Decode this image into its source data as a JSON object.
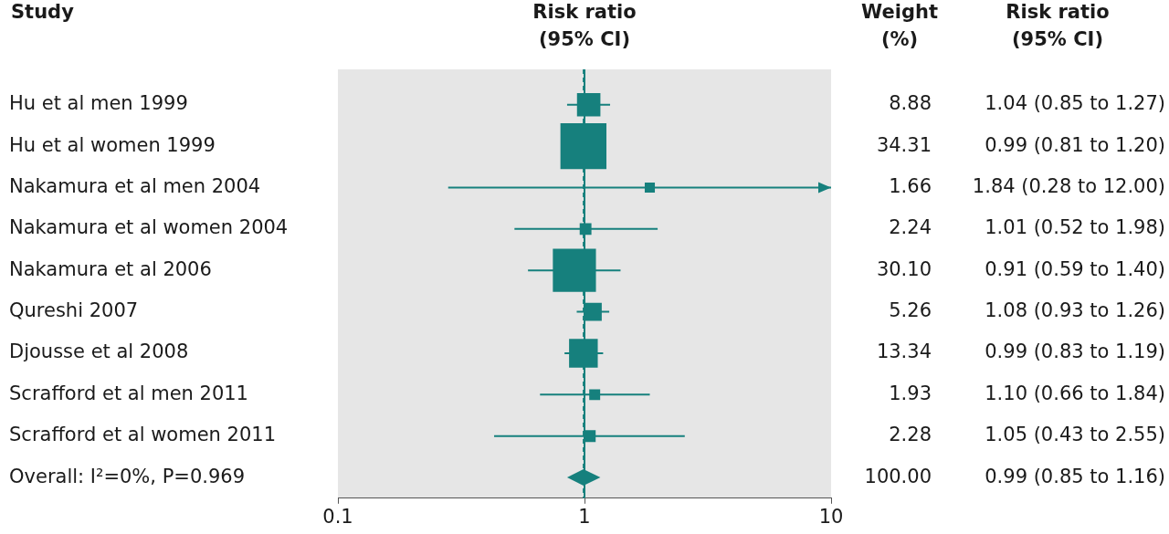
{
  "chart_data": {
    "type": "forest",
    "columns": [
      [
        "Study"
      ],
      [
        "Risk ratio",
        "(95% CI)"
      ],
      [
        "Weight",
        "(%)"
      ],
      [
        "Risk ratio",
        "(95% CI)"
      ]
    ],
    "categories": [
      "Hu et al men 1999",
      "Hu et al women 1999",
      "Nakamura et al men 2004",
      "Nakamura et al women 2004",
      "Nakamura et al 2006",
      "Qureshi 2007",
      "Djousse et al 2008",
      "Scrafford et al men 2011",
      "Scrafford et al women 2011"
    ],
    "values": [
      1.04,
      0.99,
      1.84,
      1.01,
      0.91,
      1.08,
      0.99,
      1.1,
      1.05
    ],
    "lower": [
      0.85,
      0.81,
      0.28,
      0.52,
      0.59,
      0.93,
      0.83,
      0.66,
      0.43
    ],
    "upper": [
      1.27,
      1.2,
      12.0,
      1.98,
      1.4,
      1.26,
      1.19,
      1.84,
      2.55
    ],
    "weights": [
      8.88,
      34.31,
      1.66,
      2.24,
      30.1,
      5.26,
      13.34,
      1.93,
      2.28
    ],
    "weight_labels": [
      "8.88",
      "34.31",
      "1.66",
      "2.24",
      "30.10",
      "5.26",
      "13.34",
      "1.93",
      "2.28"
    ],
    "value_labels": [
      "1.04 (0.85 to 1.27)",
      "0.99 (0.81 to 1.20)",
      "1.84 (0.28 to 12.00)",
      "1.01 (0.52 to 1.98)",
      "0.91 (0.59 to 1.40)",
      "1.08 (0.93 to 1.26)",
      "0.99 (0.83 to 1.19)",
      "1.10 (0.66 to 1.84)",
      "1.05 (0.43 to 2.55)"
    ],
    "overall": {
      "name": "Overall: I²=0%, P=0.969",
      "value": 0.99,
      "lower": 0.85,
      "upper": 1.16,
      "weight": 100,
      "weight_label": "100.00",
      "value_label": "0.99 (0.85 to 1.16)"
    },
    "reference_line": 1,
    "marker": "square",
    "color": "#16807d",
    "xlim": [
      0.1,
      10
    ],
    "xticks": [
      0.1,
      1,
      10
    ],
    "log": "x",
    "grid": false
  }
}
